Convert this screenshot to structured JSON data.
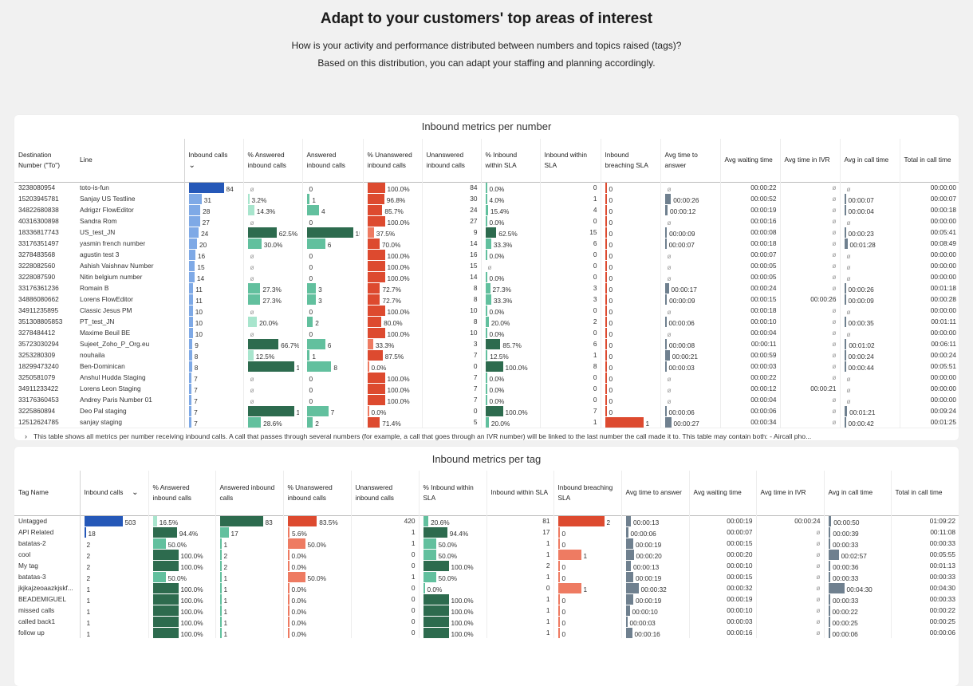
{
  "header": {
    "title": "Adapt to your customers' top areas of interest",
    "subtitle_1": "How is your activity and performance distributed between numbers and topics raised (tags)?",
    "subtitle_2": "Based on this distribution, you can adapt your staffing and planning accordingly."
  },
  "colors": {
    "inbound": "#2558b8",
    "inbound_light": "#7ea9e6",
    "answered": "#2d6b4e",
    "answered_light": "#62c09e",
    "answered_pale": "#a8e5cd",
    "unanswered": "#dd4a2f",
    "unanswered_light": "#ee7b62",
    "sla": "#2d6b4e",
    "time": "#6f808f"
  },
  "number_table": {
    "title": "Inbound metrics per number",
    "columns": [
      "Destination Number (\"To\")",
      "Line",
      "Inbound calls",
      "% Answered inbound calls",
      "Answered inbound calls",
      "% Unanswered inbound calls",
      "Unanswered inbound calls",
      "% Inbound within SLA",
      "Inbound within SLA",
      "Inbound breaching SLA",
      "Avg time to answer",
      "Avg waiting time",
      "Avg time in IVR",
      "Avg in call time",
      "Total in call time"
    ],
    "sort_icon": "chevron-down-icon",
    "rows": [
      {
        "num": "3238080954",
        "line": "toto-is-fun",
        "inb": 84,
        "pans": "ø",
        "ans": "0",
        "punans": "100.0%",
        "unans": 84,
        "psla": "0.0%",
        "sla": 0,
        "breach": "0",
        "tta": "ø",
        "wait": "00:00:22",
        "ivr": "ø",
        "incall": "ø",
        "total": "00:00:00"
      },
      {
        "num": "15203945781",
        "line": "Sanjay US Testline",
        "inb": 31,
        "pans": "3.2%",
        "ans": "1",
        "punans": "96.8%",
        "unans": 30,
        "psla": "4.0%",
        "sla": 1,
        "breach": "0",
        "tta": "00:00:26",
        "wait": "00:00:52",
        "ivr": "ø",
        "incall": "00:00:07",
        "total": "00:00:07"
      },
      {
        "num": "34822680838",
        "line": "Adrigzr FlowEditor",
        "inb": 28,
        "pans": "14.3%",
        "ans": "4",
        "punans": "85.7%",
        "unans": 24,
        "psla": "15.4%",
        "sla": 4,
        "breach": "0",
        "tta": "00:00:12",
        "wait": "00:00:19",
        "ivr": "ø",
        "incall": "00:00:04",
        "total": "00:00:18"
      },
      {
        "num": "40316300898",
        "line": "Sandra Rom",
        "inb": 27,
        "pans": "ø",
        "ans": "0",
        "punans": "100.0%",
        "unans": 27,
        "psla": "0.0%",
        "sla": 0,
        "breach": "0",
        "tta": "ø",
        "wait": "00:00:16",
        "ivr": "ø",
        "incall": "ø",
        "total": "00:00:00"
      },
      {
        "num": "18336817743",
        "line": "US_test_JN",
        "inb": 24,
        "pans": "62.5%",
        "ans": "15",
        "punans": "37.5%",
        "unans": 9,
        "psla": "62.5%",
        "sla": 15,
        "breach": "0",
        "tta": "00:00:09",
        "wait": "00:00:08",
        "ivr": "ø",
        "incall": "00:00:23",
        "total": "00:05:41"
      },
      {
        "num": "33176351497",
        "line": "yasmin french number",
        "inb": 20,
        "pans": "30.0%",
        "ans": "6",
        "punans": "70.0%",
        "unans": 14,
        "psla": "33.3%",
        "sla": 6,
        "breach": "0",
        "tta": "00:00:07",
        "wait": "00:00:18",
        "ivr": "ø",
        "incall": "00:01:28",
        "total": "00:08:49"
      },
      {
        "num": "3278483568",
        "line": "agustin test 3",
        "inb": 16,
        "pans": "ø",
        "ans": "0",
        "punans": "100.0%",
        "unans": 16,
        "psla": "0.0%",
        "sla": 0,
        "breach": "0",
        "tta": "ø",
        "wait": "00:00:07",
        "ivr": "ø",
        "incall": "ø",
        "total": "00:00:00"
      },
      {
        "num": "3228082560",
        "line": "Ashish Vaishnav Number",
        "inb": 15,
        "pans": "ø",
        "ans": "0",
        "punans": "100.0%",
        "unans": 15,
        "psla": "ø",
        "sla": 0,
        "breach": "0",
        "tta": "ø",
        "wait": "00:00:05",
        "ivr": "ø",
        "incall": "ø",
        "total": "00:00:00"
      },
      {
        "num": "3228087590",
        "line": "Nitin belgium number",
        "inb": 14,
        "pans": "ø",
        "ans": "0",
        "punans": "100.0%",
        "unans": 14,
        "psla": "0.0%",
        "sla": 0,
        "breach": "0",
        "tta": "ø",
        "wait": "00:00:05",
        "ivr": "ø",
        "incall": "ø",
        "total": "00:00:00"
      },
      {
        "num": "33176361236",
        "line": "Romain B",
        "inb": 11,
        "pans": "27.3%",
        "ans": "3",
        "punans": "72.7%",
        "unans": 8,
        "psla": "27.3%",
        "sla": 3,
        "breach": "0",
        "tta": "00:00:17",
        "wait": "00:00:24",
        "ivr": "ø",
        "incall": "00:00:26",
        "total": "00:01:18"
      },
      {
        "num": "34886080662",
        "line": "Lorens FlowEditor",
        "inb": 11,
        "pans": "27.3%",
        "ans": "3",
        "punans": "72.7%",
        "unans": 8,
        "psla": "33.3%",
        "sla": 3,
        "breach": "0",
        "tta": "00:00:09",
        "wait": "00:00:15",
        "ivr": "00:00:26",
        "incall": "00:00:09",
        "total": "00:00:28"
      },
      {
        "num": "34911235895",
        "line": "Classic Jesus PM",
        "inb": 10,
        "pans": "ø",
        "ans": "0",
        "punans": "100.0%",
        "unans": 10,
        "psla": "0.0%",
        "sla": 0,
        "breach": "0",
        "tta": "ø",
        "wait": "00:00:18",
        "ivr": "ø",
        "incall": "ø",
        "total": "00:00:00"
      },
      {
        "num": "351308805853",
        "line": "PT_test_JN",
        "inb": 10,
        "pans": "20.0%",
        "ans": "2",
        "punans": "80.0%",
        "unans": 8,
        "psla": "20.0%",
        "sla": 2,
        "breach": "0",
        "tta": "00:00:06",
        "wait": "00:00:10",
        "ivr": "ø",
        "incall": "00:00:35",
        "total": "00:01:11"
      },
      {
        "num": "3278484412",
        "line": "Maxime Beuil BE",
        "inb": 10,
        "pans": "ø",
        "ans": "0",
        "punans": "100.0%",
        "unans": 10,
        "psla": "0.0%",
        "sla": 0,
        "breach": "0",
        "tta": "ø",
        "wait": "00:00:04",
        "ivr": "ø",
        "incall": "ø",
        "total": "00:00:00"
      },
      {
        "num": "35723030294",
        "line": "Sujeet_Zoho_P_Org.eu",
        "inb": 9,
        "pans": "66.7%",
        "ans": "6",
        "punans": "33.3%",
        "unans": 3,
        "psla": "85.7%",
        "sla": 6,
        "breach": "0",
        "tta": "00:00:08",
        "wait": "00:00:11",
        "ivr": "ø",
        "incall": "00:01:02",
        "total": "00:06:11"
      },
      {
        "num": "3253280309",
        "line": "nouhaila",
        "inb": 8,
        "pans": "12.5%",
        "ans": "1",
        "punans": "87.5%",
        "unans": 7,
        "psla": "12.5%",
        "sla": 1,
        "breach": "0",
        "tta": "00:00:21",
        "wait": "00:00:59",
        "ivr": "ø",
        "incall": "00:00:24",
        "total": "00:00:24"
      },
      {
        "num": "18299473240",
        "line": "Ben-Dominican",
        "inb": 8,
        "pans": "100.0%",
        "ans": "8",
        "punans": "0.0%",
        "unans": 0,
        "psla": "100.0%",
        "sla": 8,
        "breach": "0",
        "tta": "00:00:03",
        "wait": "00:00:03",
        "ivr": "ø",
        "incall": "00:00:44",
        "total": "00:05:51"
      },
      {
        "num": "3250581079",
        "line": "Anshul Hudda Staging",
        "inb": 7,
        "pans": "ø",
        "ans": "0",
        "punans": "100.0%",
        "unans": 7,
        "psla": "0.0%",
        "sla": 0,
        "breach": "0",
        "tta": "ø",
        "wait": "00:00:22",
        "ivr": "ø",
        "incall": "ø",
        "total": "00:00:00"
      },
      {
        "num": "34911233422",
        "line": "Lorens Leon Staging",
        "inb": 7,
        "pans": "ø",
        "ans": "0",
        "punans": "100.0%",
        "unans": 7,
        "psla": "0.0%",
        "sla": 0,
        "breach": "0",
        "tta": "ø",
        "wait": "00:00:12",
        "ivr": "00:00:21",
        "incall": "ø",
        "total": "00:00:00"
      },
      {
        "num": "33176360453",
        "line": "Andrey Paris Number 01",
        "inb": 7,
        "pans": "ø",
        "ans": "0",
        "punans": "100.0%",
        "unans": 7,
        "psla": "0.0%",
        "sla": 0,
        "breach": "0",
        "tta": "ø",
        "wait": "00:00:04",
        "ivr": "ø",
        "incall": "ø",
        "total": "00:00:00"
      },
      {
        "num": "3225860894",
        "line": "Deo Pal staging",
        "inb": 7,
        "pans": "100.0%",
        "ans": "7",
        "punans": "0.0%",
        "unans": 0,
        "psla": "100.0%",
        "sla": 7,
        "breach": "0",
        "tta": "00:00:06",
        "wait": "00:00:06",
        "ivr": "ø",
        "incall": "00:01:21",
        "total": "00:09:24"
      },
      {
        "num": "12512624785",
        "line": "sanjay staging",
        "inb": 7,
        "pans": "28.6%",
        "ans": "2",
        "punans": "71.4%",
        "unans": 5,
        "psla": "20.0%",
        "sla": 1,
        "breach": "1",
        "tta": "00:00:27",
        "wait": "00:00:34",
        "ivr": "ø",
        "incall": "00:00:42",
        "total": "00:01:25"
      }
    ],
    "footnote": "This table shows all metrics per number receiving inbound calls. A call that passes through several numbers (for example, a call that goes through an IVR number) will be linked to the last number the call made it to. This table may contain both: - Aircall pho..."
  },
  "tag_table": {
    "title": "Inbound metrics per tag",
    "columns": [
      "Tag Name",
      "Inbound calls",
      "% Answered inbound calls",
      "Answered inbound calls",
      "% Unanswered inbound calls",
      "Unanswered inbound calls",
      "% Inbound within SLA",
      "Inbound within SLA",
      "Inbound breaching SLA",
      "Avg time to answer",
      "Avg waiting time",
      "Avg time in IVR",
      "Avg in call time",
      "Total in call time"
    ],
    "sort_icon": "chevron-down-icon",
    "rows": [
      {
        "tag": "Untagged",
        "inb": 503,
        "pans": "16.5%",
        "ans": 83,
        "punans": "83.5%",
        "unans": 420,
        "psla": "20.6%",
        "sla": 81,
        "breach": 2,
        "tta": "00:00:13",
        "wait": "00:00:19",
        "ivr": "00:00:24",
        "incall": "00:00:50",
        "total": "01:09:22"
      },
      {
        "tag": "API Related",
        "inb": 18,
        "pans": "94.4%",
        "ans": 17,
        "punans": "5.6%",
        "unans": 1,
        "psla": "94.4%",
        "sla": 17,
        "breach": 0,
        "tta": "00:00:06",
        "wait": "00:00:07",
        "ivr": "ø",
        "incall": "00:00:39",
        "total": "00:11:08"
      },
      {
        "tag": "batatas-2",
        "inb": 2,
        "pans": "50.0%",
        "ans": 1,
        "punans": "50.0%",
        "unans": 1,
        "psla": "50.0%",
        "sla": 1,
        "breach": 0,
        "tta": "00:00:19",
        "wait": "00:00:15",
        "ivr": "ø",
        "incall": "00:00:33",
        "total": "00:00:33"
      },
      {
        "tag": "cool",
        "inb": 2,
        "pans": "100.0%",
        "ans": 2,
        "punans": "0.0%",
        "unans": 0,
        "psla": "50.0%",
        "sla": 1,
        "breach": 1,
        "tta": "00:00:20",
        "wait": "00:00:20",
        "ivr": "ø",
        "incall": "00:02:57",
        "total": "00:05:55"
      },
      {
        "tag": "My tag",
        "inb": 2,
        "pans": "100.0%",
        "ans": 2,
        "punans": "0.0%",
        "unans": 0,
        "psla": "100.0%",
        "sla": 2,
        "breach": 0,
        "tta": "00:00:13",
        "wait": "00:00:10",
        "ivr": "ø",
        "incall": "00:00:36",
        "total": "00:01:13"
      },
      {
        "tag": "batatas-3",
        "inb": 2,
        "pans": "50.0%",
        "ans": 1,
        "punans": "50.0%",
        "unans": 1,
        "psla": "50.0%",
        "sla": 1,
        "breach": 0,
        "tta": "00:00:19",
        "wait": "00:00:15",
        "ivr": "ø",
        "incall": "00:00:33",
        "total": "00:00:33"
      },
      {
        "tag": "jkjkajzeoaazkjskf...",
        "inb": 1,
        "pans": "100.0%",
        "ans": 1,
        "punans": "0.0%",
        "unans": 0,
        "psla": "0.0%",
        "sla": 0,
        "breach": 1,
        "tta": "00:00:32",
        "wait": "00:00:32",
        "ivr": "ø",
        "incall": "00:04:30",
        "total": "00:04:30"
      },
      {
        "tag": "BEADEMIGUEL",
        "inb": 1,
        "pans": "100.0%",
        "ans": 1,
        "punans": "0.0%",
        "unans": 0,
        "psla": "100.0%",
        "sla": 1,
        "breach": 0,
        "tta": "00:00:19",
        "wait": "00:00:19",
        "ivr": "ø",
        "incall": "00:00:33",
        "total": "00:00:33"
      },
      {
        "tag": "missed calls",
        "inb": 1,
        "pans": "100.0%",
        "ans": 1,
        "punans": "0.0%",
        "unans": 0,
        "psla": "100.0%",
        "sla": 1,
        "breach": 0,
        "tta": "00:00:10",
        "wait": "00:00:10",
        "ivr": "ø",
        "incall": "00:00:22",
        "total": "00:00:22"
      },
      {
        "tag": "called back1",
        "inb": 1,
        "pans": "100.0%",
        "ans": 1,
        "punans": "0.0%",
        "unans": 0,
        "psla": "100.0%",
        "sla": 1,
        "breach": 0,
        "tta": "00:00:03",
        "wait": "00:00:03",
        "ivr": "ø",
        "incall": "00:00:25",
        "total": "00:00:25"
      },
      {
        "tag": "follow up",
        "inb": 1,
        "pans": "100.0%",
        "ans": 1,
        "punans": "0.0%",
        "unans": 0,
        "psla": "100.0%",
        "sla": 1,
        "breach": 0,
        "tta": "00:00:16",
        "wait": "00:00:16",
        "ivr": "ø",
        "incall": "00:00:06",
        "total": "00:00:06"
      }
    ]
  }
}
